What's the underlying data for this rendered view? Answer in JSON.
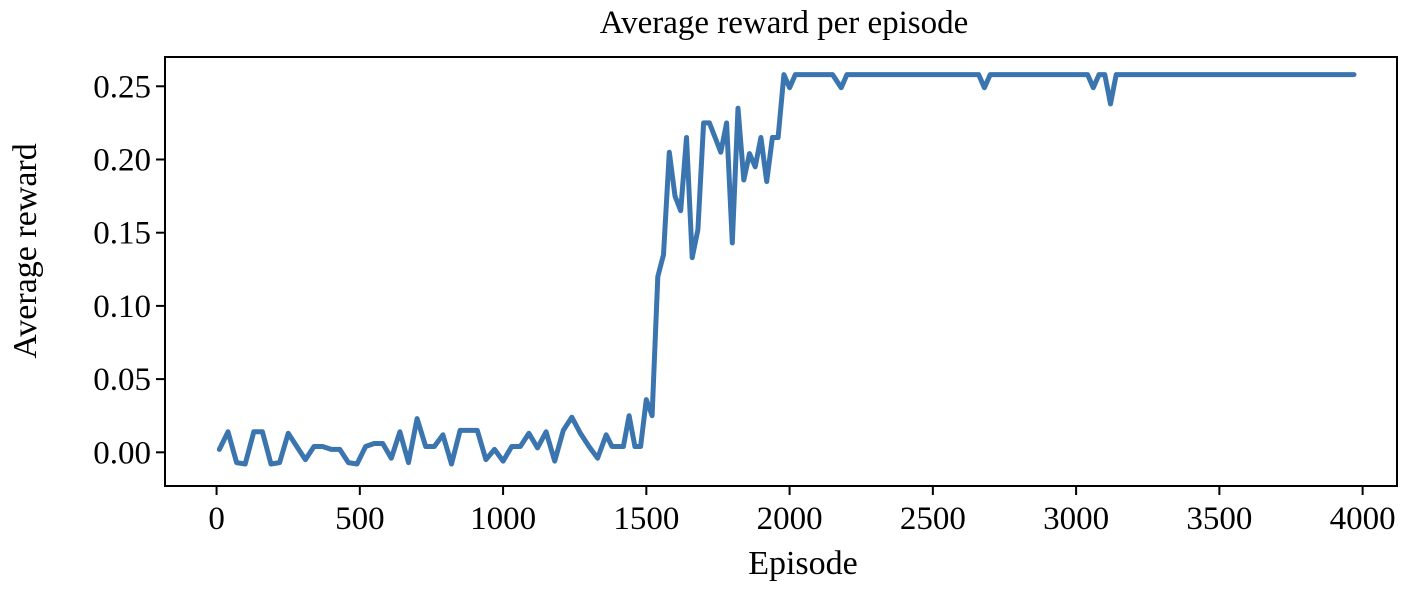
{
  "chart_data": {
    "type": "line",
    "title": "Average reward per episode",
    "xlabel": "Episode",
    "ylabel": "Average reward",
    "xlim": [
      -180,
      4120
    ],
    "ylim": [
      -0.023,
      0.27
    ],
    "xticks": [
      0,
      500,
      1000,
      1500,
      2000,
      2500,
      3000,
      3500,
      4000
    ],
    "xtick_labels": [
      "0",
      "500",
      "1000",
      "1500",
      "2000",
      "2500",
      "3000",
      "3500",
      "4000"
    ],
    "yticks": [
      0.0,
      0.05,
      0.1,
      0.15,
      0.2,
      0.25
    ],
    "ytick_labels": [
      "0.00",
      "0.05",
      "0.10",
      "0.15",
      "0.20",
      "0.25"
    ],
    "grid": false,
    "legend": "none",
    "series": [
      {
        "color": "#3b75b0",
        "x": [
          10,
          40,
          70,
          100,
          130,
          160,
          190,
          220,
          250,
          280,
          310,
          340,
          370,
          400,
          430,
          460,
          490,
          520,
          550,
          580,
          610,
          640,
          670,
          700,
          730,
          760,
          790,
          820,
          850,
          880,
          910,
          940,
          970,
          1000,
          1030,
          1060,
          1090,
          1120,
          1150,
          1180,
          1210,
          1240,
          1270,
          1300,
          1330,
          1360,
          1380,
          1400,
          1420,
          1440,
          1460,
          1480,
          1500,
          1520,
          1540,
          1560,
          1580,
          1600,
          1620,
          1640,
          1660,
          1680,
          1700,
          1720,
          1740,
          1760,
          1780,
          1800,
          1820,
          1840,
          1860,
          1880,
          1900,
          1920,
          1940,
          1960,
          1980,
          2000,
          2020,
          2040,
          2060,
          2100,
          2150,
          2180,
          2200,
          2220,
          2300,
          2400,
          2500,
          2600,
          2660,
          2680,
          2700,
          2720,
          2800,
          2900,
          3000,
          3040,
          3060,
          3080,
          3100,
          3120,
          3140,
          3160,
          3200,
          3300,
          3400,
          3500,
          3600,
          3700,
          3800,
          3900,
          3970
        ],
        "y": [
          0.002,
          0.014,
          -0.007,
          -0.008,
          0.014,
          0.014,
          -0.008,
          -0.007,
          0.013,
          0.004,
          -0.005,
          0.004,
          0.004,
          0.002,
          0.002,
          -0.007,
          -0.008,
          0.004,
          0.006,
          0.006,
          -0.004,
          0.014,
          -0.007,
          0.023,
          0.004,
          0.004,
          0.012,
          -0.008,
          0.015,
          0.015,
          0.015,
          -0.005,
          0.002,
          -0.006,
          0.004,
          0.004,
          0.013,
          0.003,
          0.014,
          -0.006,
          0.015,
          0.024,
          0.013,
          0.004,
          -0.004,
          0.012,
          0.004,
          0.004,
          0.004,
          0.025,
          0.004,
          0.004,
          0.036,
          0.025,
          0.12,
          0.135,
          0.205,
          0.175,
          0.165,
          0.215,
          0.133,
          0.152,
          0.225,
          0.225,
          0.215,
          0.205,
          0.225,
          0.143,
          0.235,
          0.186,
          0.204,
          0.195,
          0.215,
          0.185,
          0.215,
          0.215,
          0.258,
          0.249,
          0.258,
          0.258,
          0.258,
          0.258,
          0.258,
          0.249,
          0.258,
          0.258,
          0.258,
          0.258,
          0.258,
          0.258,
          0.258,
          0.249,
          0.258,
          0.258,
          0.258,
          0.258,
          0.258,
          0.258,
          0.249,
          0.258,
          0.258,
          0.238,
          0.258,
          0.258,
          0.258,
          0.258,
          0.258,
          0.258,
          0.258,
          0.258,
          0.258,
          0.258,
          0.258
        ]
      }
    ]
  }
}
